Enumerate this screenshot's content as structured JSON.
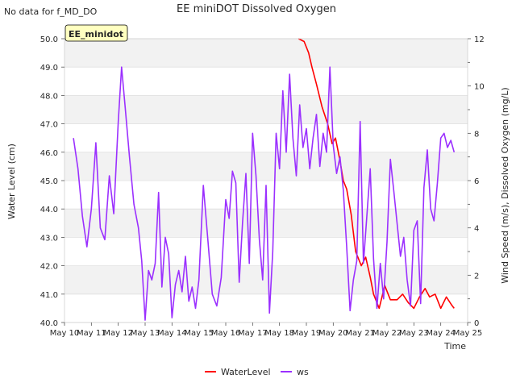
{
  "header": {
    "no_data_note": "No data for f_MD_DO",
    "title": "EE miniDOT Dissolved Oxygen"
  },
  "chart_data": {
    "type": "line",
    "title": "EE miniDOT Dissolved Oxygen",
    "xlabel": "Time",
    "ylabel_left": "Water Level (cm)",
    "ylabel_right": "Wind Speed (m/s), Dissolved Oxygen (mg/L)",
    "ylim_left": [
      40.0,
      50.0
    ],
    "ylim_right": [
      0,
      12
    ],
    "xlim_days": [
      10,
      25
    ],
    "x_tick_labels": [
      "May 10",
      "May 11",
      "May 12",
      "May 13",
      "May 14",
      "May 15",
      "May 16",
      "May 17",
      "May 18",
      "May 19",
      "May 20",
      "May 21",
      "May 22",
      "May 23",
      "May 24",
      "May 25"
    ],
    "y_left_tick_labels": [
      "40.0",
      "41.0",
      "42.0",
      "43.0",
      "44.0",
      "45.0",
      "46.0",
      "47.0",
      "48.0",
      "49.0",
      "50.0"
    ],
    "y_right_tick_labels": [
      "0",
      "2",
      "4",
      "6",
      "8",
      "10",
      "12"
    ],
    "grid": true,
    "banded_background": true,
    "legend_placement": "bottom-center",
    "annotation_box": "EE_minidot",
    "colors": {
      "WaterLevel": "#ff0000",
      "ws": "#9b30ff",
      "band": "#f2f2f2",
      "annotation_bg": "#ffffc0",
      "annotation_text": "#8b0000"
    },
    "series": [
      {
        "name": "WaterLevel",
        "axis": "left",
        "x": [
          "May 18 17:00",
          "May 18 22:00",
          "May 19 02:00",
          "May 19 05:00",
          "May 19 09:00",
          "May 19 14:00",
          "May 19 19:00",
          "May 19 23:00",
          "May 20 02:00",
          "May 20 06:00",
          "May 20 09:00",
          "May 20 12:00",
          "May 20 16:00",
          "May 20 20:00",
          "May 21 01:00",
          "May 21 05:00",
          "May 21 09:00",
          "May 21 12:00",
          "May 21 17:00",
          "May 21 22:00",
          "May 22 03:00",
          "May 22 09:00",
          "May 22 14:00",
          "May 22 19:00",
          "May 23 00:00",
          "May 23 05:00",
          "May 23 10:00",
          "May 23 14:00",
          "May 23 19:00",
          "May 24 00:00",
          "May 24 05:00",
          "May 24 10:00",
          "May 24 12:00"
        ],
        "y": [
          50.0,
          49.9,
          49.5,
          49.0,
          48.4,
          47.6,
          47.0,
          46.3,
          46.5,
          45.7,
          45.0,
          44.7,
          43.8,
          42.5,
          42.0,
          42.3,
          41.6,
          41.0,
          40.5,
          41.3,
          40.8,
          40.8,
          41.0,
          40.7,
          40.5,
          40.9,
          41.2,
          40.9,
          41.0,
          40.5,
          40.9,
          40.6,
          40.5
        ]
      },
      {
        "name": "ws",
        "axis": "right",
        "x": [
          "May 10 08:00",
          "May 10 12:00",
          "May 10 16:00",
          "May 10 20:00",
          "May 11 00:00",
          "May 11 04:00",
          "May 11 08:00",
          "May 11 12:00",
          "May 11 16:00",
          "May 11 20:00",
          "May 12 00:00",
          "May 12 03:00",
          "May 12 06:00",
          "May 12 10:00",
          "May 12 14:00",
          "May 12 18:00",
          "May 12 21:00",
          "May 13 00:00",
          "May 13 03:00",
          "May 13 06:00",
          "May 13 09:00",
          "May 13 12:00",
          "May 13 15:00",
          "May 13 18:00",
          "May 13 21:00",
          "May 14 00:00",
          "May 14 03:00",
          "May 14 06:00",
          "May 14 09:00",
          "May 14 12:00",
          "May 14 15:00",
          "May 14 18:00",
          "May 14 21:00",
          "May 15 00:00",
          "May 15 04:00",
          "May 15 08:00",
          "May 15 12:00",
          "May 15 16:00",
          "May 15 20:00",
          "May 16 00:00",
          "May 16 03:00",
          "May 16 06:00",
          "May 16 09:00",
          "May 16 12:00",
          "May 16 15:00",
          "May 16 18:00",
          "May 16 21:00",
          "May 17 00:00",
          "May 17 03:00",
          "May 17 06:00",
          "May 17 09:00",
          "May 17 12:00",
          "May 17 15:00",
          "May 17 18:00",
          "May 17 21:00",
          "May 18 00:00",
          "May 18 03:00",
          "May 18 06:00",
          "May 18 09:00",
          "May 18 12:00",
          "May 18 15:00",
          "May 18 18:00",
          "May 18 21:00",
          "May 19 00:00",
          "May 19 03:00",
          "May 19 06:00",
          "May 19 09:00",
          "May 19 12:00",
          "May 19 15:00",
          "May 19 18:00",
          "May 19 21:00",
          "May 20 00:00",
          "May 20 03:00",
          "May 20 06:00",
          "May 20 09:00",
          "May 20 12:00",
          "May 20 15:00",
          "May 20 18:00",
          "May 20 21:00",
          "May 21 00:00",
          "May 21 03:00",
          "May 21 06:00",
          "May 21 09:00",
          "May 21 12:00",
          "May 21 15:00",
          "May 21 18:00",
          "May 21 21:00",
          "May 22 00:00",
          "May 22 03:00",
          "May 22 06:00",
          "May 22 09:00",
          "May 22 12:00",
          "May 22 15:00",
          "May 22 18:00",
          "May 22 21:00",
          "May 23 00:00",
          "May 23 03:00",
          "May 23 06:00",
          "May 23 09:00",
          "May 23 12:00",
          "May 23 15:00",
          "May 23 18:00",
          "May 23 21:00",
          "May 24 00:00",
          "May 24 03:00",
          "May 24 06:00",
          "May 24 09:00",
          "May 24 12:00"
        ],
        "y": [
          7.8,
          6.5,
          4.5,
          3.2,
          4.8,
          7.6,
          4.0,
          3.5,
          6.2,
          4.6,
          8.5,
          10.8,
          9.2,
          7.0,
          5.0,
          4.0,
          2.6,
          0.1,
          2.2,
          1.8,
          2.5,
          5.5,
          1.5,
          3.6,
          2.9,
          0.2,
          1.6,
          2.2,
          1.3,
          2.8,
          0.9,
          1.5,
          0.6,
          1.8,
          5.8,
          3.5,
          1.2,
          0.7,
          1.9,
          5.2,
          4.4,
          6.4,
          5.9,
          1.7,
          4.2,
          6.3,
          2.5,
          8.0,
          6.2,
          3.5,
          1.8,
          5.8,
          0.4,
          3.0,
          8.0,
          6.5,
          9.8,
          7.2,
          10.5,
          7.8,
          6.2,
          9.2,
          7.4,
          8.2,
          6.5,
          7.8,
          8.8,
          6.6,
          8.0,
          7.2,
          10.8,
          7.5,
          6.3,
          7.0,
          5.6,
          3.2,
          0.5,
          1.8,
          2.6,
          8.5,
          2.5,
          4.5,
          6.5,
          2.7,
          0.6,
          2.5,
          1.0,
          3.4,
          6.9,
          5.6,
          4.2,
          2.8,
          3.6,
          1.8,
          0.7,
          3.9,
          4.3,
          0.8,
          5.7,
          7.3,
          4.8,
          4.3,
          5.9,
          7.8,
          8.0,
          7.4,
          7.7,
          7.2
        ]
      }
    ]
  }
}
